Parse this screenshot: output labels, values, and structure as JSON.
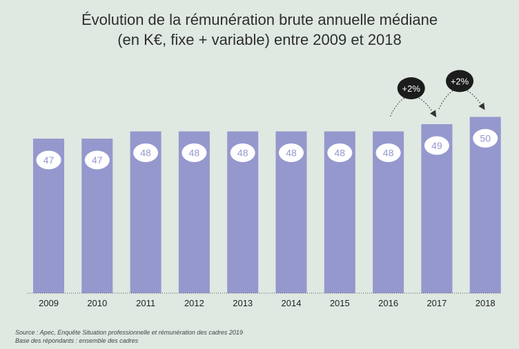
{
  "chart_data": {
    "type": "bar",
    "title_line1": "Évolution de la rémunération brute annuelle médiane",
    "title_line2": "(en K€, fixe + variable) entre 2009 et 2018",
    "categories": [
      "2009",
      "2010",
      "2011",
      "2012",
      "2013",
      "2014",
      "2015",
      "2016",
      "2017",
      "2018"
    ],
    "values": [
      47,
      47,
      48,
      48,
      48,
      48,
      48,
      48,
      49,
      50
    ],
    "value_labels": [
      "47",
      "47",
      "48",
      "48",
      "48",
      "48",
      "48",
      "48",
      "49",
      "50"
    ],
    "bar_color": "#9598cd",
    "annotations": [
      {
        "text": "+2%",
        "from": "2016",
        "to": "2017"
      },
      {
        "text": "+2%",
        "from": "2017",
        "to": "2018"
      }
    ],
    "grid": false,
    "legend": "none"
  },
  "source": {
    "line1": "Source : Apec, Enquête Situation professionnelle et rémunération des cadres 2019",
    "line2": "Base des répondants : ensemble des cadres"
  }
}
